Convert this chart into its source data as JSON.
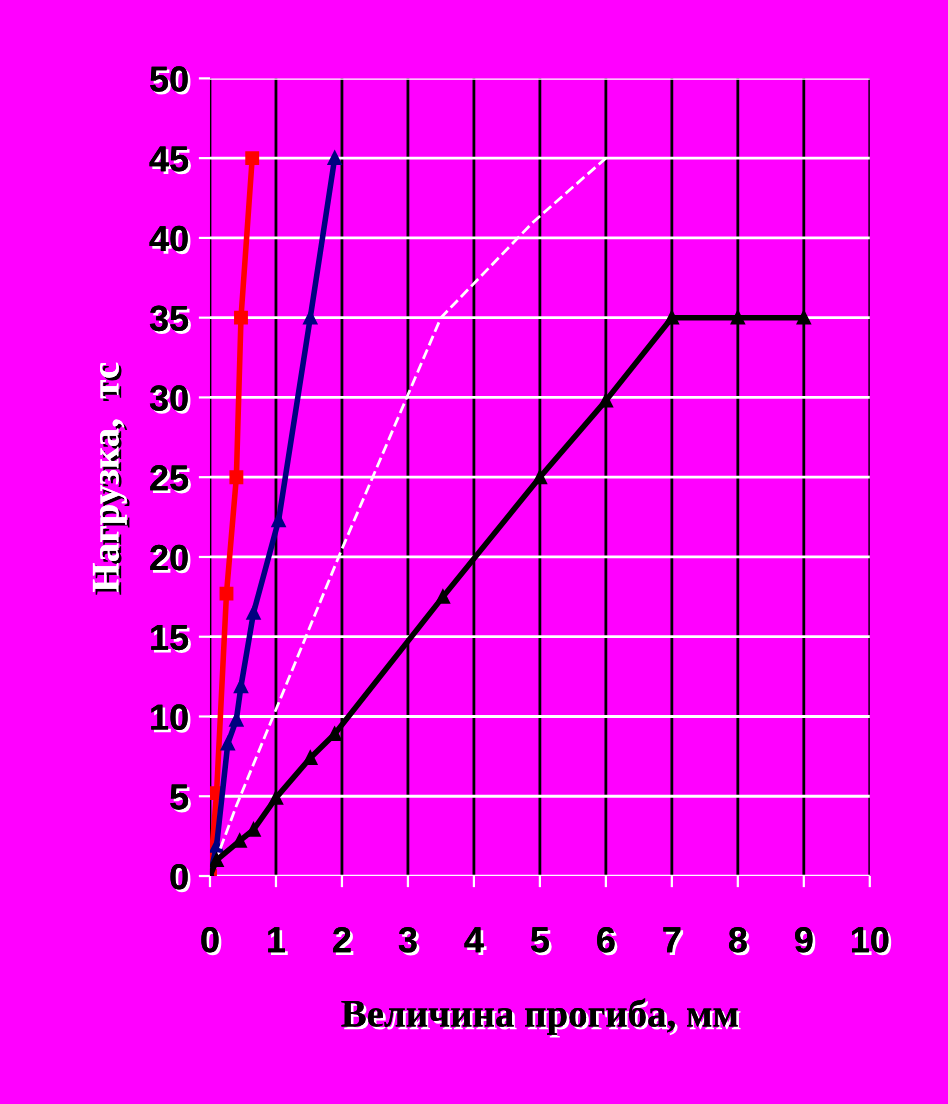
{
  "chart_data": {
    "type": "line",
    "xlabel": "Величина прогиба, мм",
    "ylabel": "Нагрузка,  тс",
    "xlim": [
      0,
      10
    ],
    "xticks": [
      0,
      1,
      2,
      3,
      4,
      5,
      6,
      7,
      8,
      9,
      10
    ],
    "ylim": [
      0,
      50
    ],
    "yticks": [
      0,
      5,
      10,
      15,
      20,
      25,
      30,
      35,
      40,
      45,
      50
    ],
    "grid": true,
    "series": [
      {
        "color": "#ff0000",
        "marker": "square",
        "line_style": "solid",
        "x": [
          0,
          0.1,
          0.25,
          0.4,
          0.47,
          0.64
        ],
        "values": [
          0,
          5.2,
          17.7,
          25,
          35,
          45
        ]
      },
      {
        "color": "#000080",
        "marker": "triangle",
        "line_style": "solid",
        "x": [
          0,
          0.1,
          0.27,
          0.4,
          0.47,
          0.66,
          1.04,
          1.52,
          1.89
        ],
        "values": [
          0,
          1.9,
          8.3,
          9.8,
          11.9,
          16.5,
          22.3,
          35,
          45
        ]
      },
      {
        "color": "#ffffff",
        "marker": "none",
        "line_style": "dashed",
        "x": [
          0,
          0.4,
          2,
          3.5,
          4.9,
          6
        ],
        "values": [
          0,
          4.4,
          20.5,
          35,
          41,
          45
        ]
      },
      {
        "color": "#000000",
        "marker": "triangle",
        "line_style": "solid",
        "x": [
          0,
          0.1,
          0.45,
          0.66,
          1,
          1.52,
          1.89,
          3.53,
          5,
          6,
          7,
          8,
          9
        ],
        "values": [
          0,
          1,
          2.2,
          2.9,
          4.9,
          7.4,
          8.9,
          17.5,
          25,
          29.8,
          35,
          35,
          35
        ]
      }
    ]
  }
}
